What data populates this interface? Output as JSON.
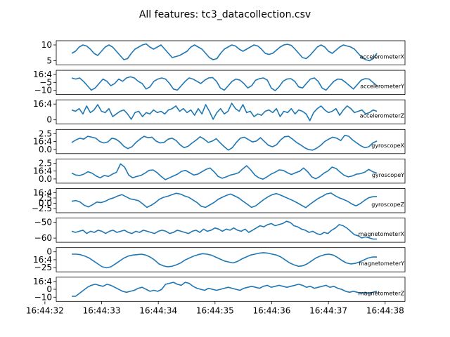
{
  "figure": {
    "title": "All features: tc3_datacollection.csv",
    "line_color": "#1f77b4"
  },
  "chart_data": {
    "type": "line",
    "x_tick_labels": [
      "16:44:32",
      "16:44:33",
      "16:44:34",
      "16:44:35",
      "16:44:36",
      "16:44:37",
      "16:44:38"
    ],
    "x_range_seconds": [
      32.2,
      38.35
    ],
    "panels": [
      {
        "name": "accelerometerX",
        "yticks": [
          "5",
          "10"
        ],
        "ylim": [
          3.5,
          13
        ],
        "values": [
          8,
          9,
          11,
          12,
          11.5,
          10,
          8,
          7,
          9,
          11,
          12,
          11,
          9,
          7,
          5,
          5.5,
          8,
          10,
          11,
          12,
          12.5,
          11,
          10,
          11,
          12,
          10,
          8,
          6,
          6.5,
          7,
          8,
          9,
          11,
          12,
          11,
          10,
          8,
          6,
          5,
          5.5,
          8,
          10,
          11,
          12,
          11.5,
          10,
          9,
          10,
          11,
          12,
          11.5,
          10,
          8,
          7.5,
          8,
          9.5,
          11,
          12,
          12.3,
          11.8,
          10,
          8,
          6,
          5.5,
          7,
          9,
          11,
          12,
          11,
          9,
          8,
          9.5,
          11,
          12,
          11.5,
          11,
          10,
          8,
          6,
          5,
          4.5,
          5.5,
          8
        ]
      },
      {
        "name": "accelerometerY",
        "yticks": [
          "−10",
          "−5",
          "16:4"
        ],
        "ylim": [
          -11,
          -2
        ],
        "values": [
          -4.5,
          -5,
          -4.5,
          -6,
          -8,
          -10,
          -9,
          -7,
          -5,
          -6,
          -8,
          -7,
          -5,
          -6,
          -4.5,
          -4,
          -4.5,
          -6,
          -7,
          -9.5,
          -8.5,
          -6,
          -5,
          -4.5,
          -5,
          -7,
          -9.5,
          -10,
          -8,
          -6,
          -4.5,
          -5,
          -6,
          -7,
          -5.5,
          -4.5,
          -4.3,
          -6,
          -9,
          -10,
          -8,
          -6,
          -5,
          -5.5,
          -7,
          -9,
          -8,
          -5.5,
          -4.8,
          -4.5,
          -5.5,
          -9,
          -10.2,
          -8.5,
          -6,
          -5,
          -4.8,
          -6,
          -8.5,
          -9,
          -7,
          -5,
          -4.5,
          -6,
          -9,
          -10,
          -8,
          -6,
          -5,
          -5.2,
          -6.5,
          -8,
          -9.5,
          -7.5,
          -5.5,
          -4.8,
          -5,
          -6.5,
          -8
        ]
      },
      {
        "name": "accelerometerZ",
        "yticks": [
          "0",
          "16:4"
        ],
        "ylim": [
          -4,
          11
        ],
        "values": [
          5,
          4,
          6,
          2,
          8,
          3,
          5,
          9,
          4,
          3,
          6,
          0,
          2,
          4,
          5,
          2,
          -2,
          3,
          4,
          0,
          3,
          2,
          5,
          3,
          4,
          2,
          5,
          6,
          8,
          4,
          6,
          3,
          5,
          1,
          6,
          2,
          9,
          4,
          -2,
          3,
          6,
          2,
          4,
          10,
          6,
          4,
          9,
          3,
          4,
          0,
          2,
          1,
          4,
          5,
          3,
          6,
          0,
          4,
          3,
          6,
          2,
          5,
          4,
          2,
          -3,
          3,
          6,
          8,
          5,
          3,
          4,
          6,
          1,
          5,
          8,
          6,
          3,
          4,
          5,
          2,
          3,
          5,
          4
        ]
      },
      {
        "name": "gyroscopeX",
        "yticks": [
          "0.0",
          "16:4",
          "2.5"
        ],
        "ylim": [
          -1.6,
          2.6
        ],
        "values": [
          0.3,
          0.8,
          1.2,
          1,
          1.6,
          1.4,
          1.2,
          0.5,
          0.2,
          0.4,
          1.2,
          1,
          0.4,
          -0.5,
          -1,
          -0.6,
          0.3,
          1,
          1.6,
          1.3,
          1.4,
          0.6,
          0.2,
          0.3,
          1,
          1.2,
          0.7,
          -0.2,
          -0.8,
          -0.5,
          0.2,
          0.8,
          1.5,
          1,
          0.3,
          0.6,
          1.1,
          0.2,
          -0.6,
          -1.3,
          -0.8,
          0.3,
          1.2,
          1.4,
          0.9,
          0.4,
          0.6,
          1.3,
          0.5,
          -0.3,
          -0.6,
          -0.2,
          0.8,
          1.5,
          1.6,
          1,
          0.3,
          -0.2,
          -0.8,
          -1.2,
          -1.3,
          -0.9,
          -0.3,
          0.5,
          1,
          1.4,
          1.2,
          0.7,
          1.8,
          1.6,
          0.8,
          0.2,
          -0.4,
          -0.8,
          -0.6,
          0.2,
          0.6
        ]
      },
      {
        "name": "gyroscopeY",
        "yticks": [
          "0.0",
          "16:4",
          "2.5"
        ],
        "ylim": [
          -1.5,
          2.8
        ],
        "values": [
          0.2,
          -0.2,
          -0.3,
          0,
          0.5,
          0.2,
          -0.4,
          -0.8,
          -0.3,
          -0.5,
          0,
          0.4,
          2.2,
          1.5,
          -0.2,
          -0.8,
          -0.5,
          -0.3,
          0.2,
          0.8,
          0.9,
          0.3,
          -0.5,
          -1.2,
          -0.8,
          -0.4,
          0,
          0.6,
          0.8,
          0.3,
          -0.2,
          0,
          0.5,
          1,
          1.3,
          0.5,
          -0.5,
          -0.9,
          -0.6,
          -0.2,
          0,
          0.3,
          1.1,
          1.8,
          0.9,
          -0.2,
          -0.8,
          -1.1,
          -0.6,
          0,
          0.4,
          0.9,
          0.8,
          0.3,
          -0.1,
          0.3,
          0.6,
          1.3,
          0.5,
          -0.6,
          -1,
          -0.5,
          0.2,
          0.7,
          1.5,
          1.2,
          0.4,
          -0.3,
          -0.6,
          -0.4,
          0,
          0.1,
          0.4,
          1,
          0.5,
          0.2
        ]
      },
      {
        "name": "gyroscopeZ",
        "yticks": [
          "−2.5",
          "0.0",
          "2.5",
          "16:4"
        ],
        "ylim": [
          -4,
          3.5
        ],
        "values": [
          -0.5,
          -0.2,
          -0.8,
          -2,
          -2.6,
          -1.8,
          -0.8,
          -1,
          -0.5,
          0.3,
          0.8,
          1.5,
          2,
          1.2,
          0.4,
          0.1,
          -0.3,
          -1.5,
          -2.8,
          -2,
          -1,
          0.3,
          1,
          1.4,
          2,
          2.5,
          2.2,
          1.5,
          1,
          0,
          -1,
          -2.4,
          -2.8,
          -1.9,
          -1,
          0.2,
          1,
          1.7,
          2.2,
          1.5,
          0.7,
          -0.5,
          -1.6,
          -2.8,
          -2.2,
          -1,
          0.2,
          1.2,
          2,
          2.4,
          1.8,
          1.1,
          0.4,
          -0.3,
          -1.1,
          -2,
          -2.9,
          -1.6,
          -0.5,
          0.6,
          1.4,
          2.3,
          2.6,
          1.6,
          0.8,
          0.2,
          -0.5,
          -1.5,
          -2.2,
          -1.4,
          -0.2,
          0.8,
          1.2,
          1.3
        ]
      },
      {
        "name": "magnetometerX",
        "yticks": [
          "−60",
          "−50"
        ],
        "ylim": [
          -67,
          -49
        ],
        "values": [
          -59,
          -60,
          -59,
          -58,
          -61,
          -59,
          -60,
          -58,
          -59,
          -61,
          -59,
          -58,
          -60,
          -59,
          -58,
          -60,
          -61,
          -59,
          -60,
          -58,
          -59,
          -60,
          -61,
          -59,
          -58,
          -59,
          -61,
          -60,
          -58,
          -59,
          -60,
          -61,
          -59,
          -58,
          -60,
          -57,
          -59,
          -58,
          -56,
          -57,
          -59,
          -57,
          -58,
          -56,
          -58,
          -59,
          -57,
          -60,
          -58,
          -56,
          -54,
          -55,
          -53,
          -52,
          -54,
          -53,
          -52,
          -50,
          -51,
          -54,
          -55,
          -57,
          -58,
          -60,
          -59,
          -61,
          -62,
          -60,
          -61,
          -58,
          -56,
          -53,
          -54,
          -56,
          -59,
          -62,
          -63,
          -65,
          -64,
          -65,
          -66,
          -66
        ]
      },
      {
        "name": "magnetometerY",
        "yticks": [
          "−25",
          "16:4",
          "0"
        ],
        "ylim": [
          -34,
          7
        ],
        "values": [
          -2,
          -2,
          -3,
          -6,
          -10,
          -16,
          -22,
          -28,
          -30,
          -28,
          -22,
          -16,
          -10,
          -6,
          -4,
          -3,
          -2,
          -4,
          -8,
          -14,
          -22,
          -26,
          -28,
          -27,
          -24,
          -20,
          -14,
          -10,
          -6,
          -3,
          -1,
          -2,
          -4,
          -8,
          -12,
          -16,
          -18,
          -20,
          -17,
          -12,
          -8,
          -4,
          -2,
          0,
          1,
          0,
          -2,
          -4,
          -8,
          -14,
          -20,
          -24,
          -27,
          -26,
          -22,
          -16,
          -10,
          -6,
          -3,
          -2,
          -4,
          -9,
          -15,
          -20,
          -22,
          -21,
          -18,
          -14,
          -10,
          -8,
          -8
        ]
      },
      {
        "name": "magnetometerZ",
        "yticks": [
          "−10",
          "0",
          "16:4"
        ],
        "ylim": [
          -14,
          6
        ],
        "values": [
          -11,
          -11,
          -8,
          -5,
          -2,
          0,
          1,
          0,
          -1,
          1,
          0,
          -2,
          -4,
          -6,
          -7,
          -6,
          -5,
          -3,
          -2,
          -4,
          -6,
          -5,
          -6,
          -4,
          1,
          2,
          3,
          1,
          0,
          3,
          2,
          -1,
          -3,
          -4,
          -5,
          -3,
          -4,
          -5,
          -4,
          -3,
          -2,
          -3,
          -4,
          -5,
          -3,
          -2,
          -1,
          -2,
          -3,
          -1,
          0,
          -2,
          -1,
          0,
          -1,
          -2,
          -1,
          0,
          1,
          0,
          -2,
          -1,
          -3,
          -2,
          -1,
          0,
          -2,
          -1,
          -3,
          -4,
          -6,
          -7,
          -6,
          -7,
          -8,
          -7,
          -8,
          -7,
          -6
        ]
      }
    ]
  }
}
